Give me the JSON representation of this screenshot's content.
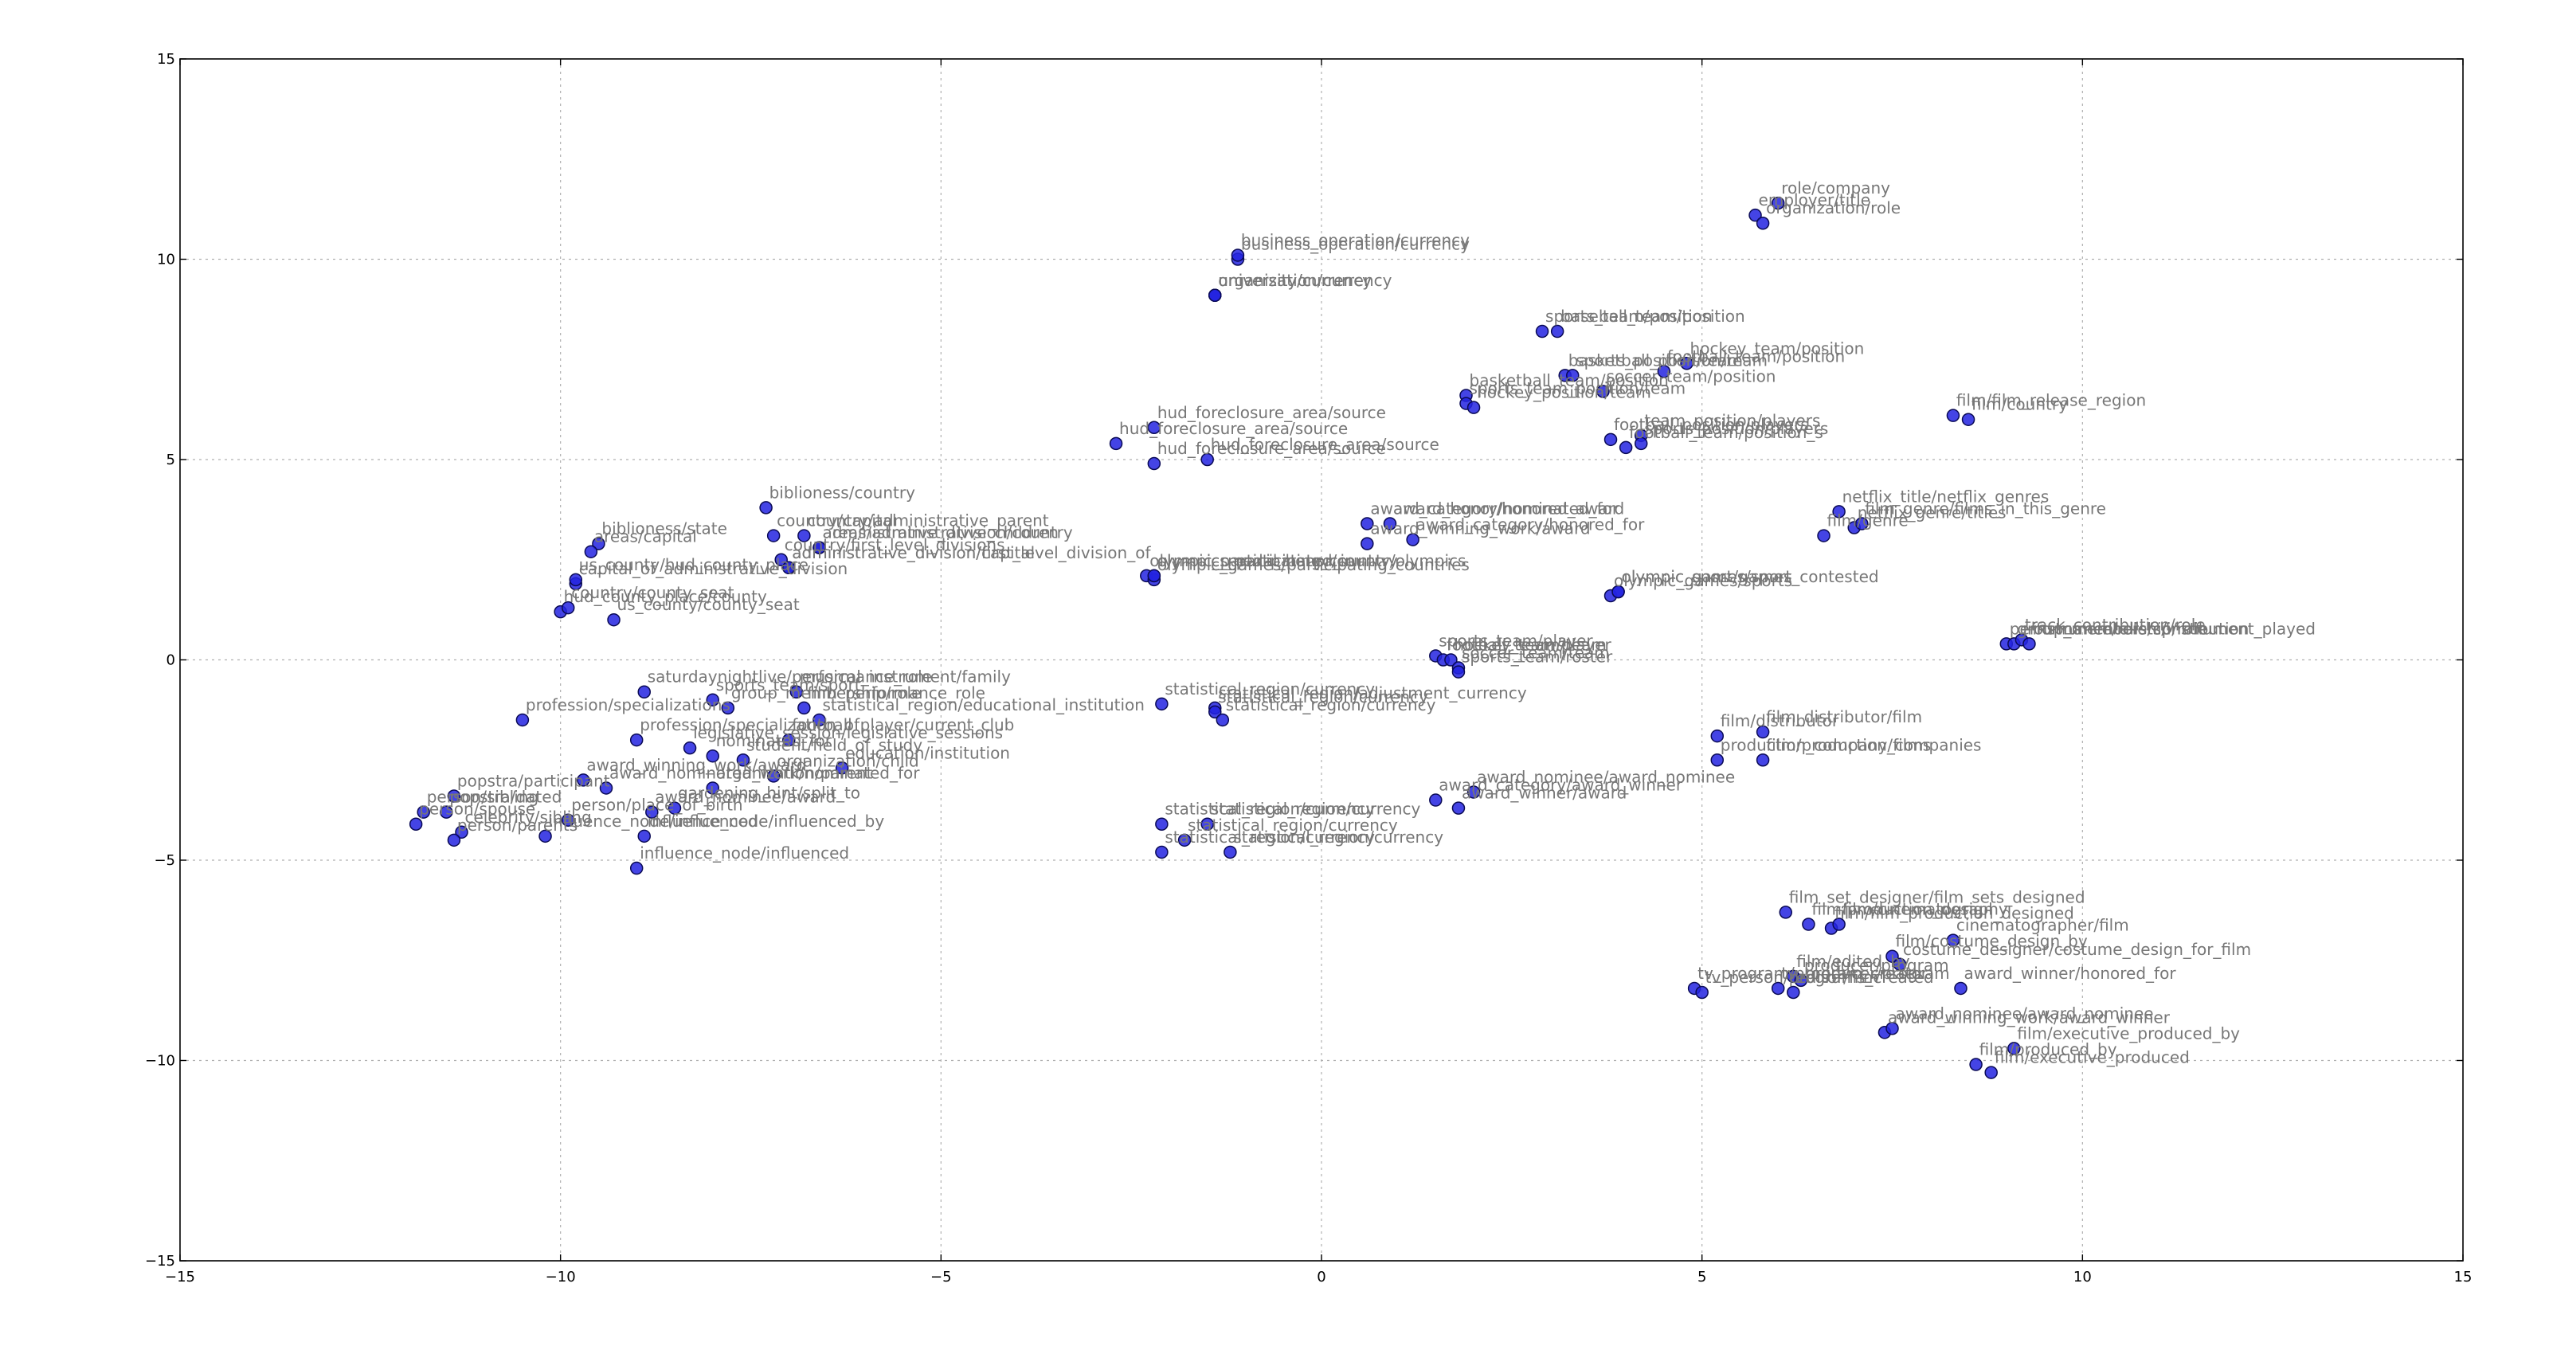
{
  "chart_data": {
    "type": "scatter",
    "title": "",
    "xlabel": "",
    "ylabel": "",
    "xlim": [
      -15,
      15
    ],
    "ylim": [
      -15,
      15
    ],
    "xticks": [
      -15,
      -10,
      -5,
      0,
      5,
      10,
      15
    ],
    "yticks": [
      -15,
      -10,
      -5,
      0,
      5,
      10,
      15
    ],
    "xtick_labels": [
      "−15",
      "−10",
      "−5",
      "0",
      "5",
      "10",
      "15"
    ],
    "ytick_labels": [
      "−15",
      "−10",
      "−5",
      "0",
      "5",
      "10",
      "15"
    ],
    "grid": true,
    "colors": {
      "point_fill": "#2323e0",
      "point_edge": "#0a0a55",
      "label_text": "#777777",
      "grid": "#b0b0b0"
    },
    "points": [
      {
        "x": 5.7,
        "y": 11.1,
        "label": "employer/title"
      },
      {
        "x": 5.8,
        "y": 10.9,
        "label": "organization/role"
      },
      {
        "x": 6.0,
        "y": 11.4,
        "label": "role/company"
      },
      {
        "x": -1.1,
        "y": 10.0,
        "label": "business_operation/currency"
      },
      {
        "x": -1.1,
        "y": 10.1,
        "label": "business_operation/currency"
      },
      {
        "x": -1.4,
        "y": 9.1,
        "label": "university/currency"
      },
      {
        "x": -1.4,
        "y": 9.1,
        "label": "university/currency"
      },
      {
        "x": -1.4,
        "y": 9.1,
        "label": "organization/currency"
      },
      {
        "x": 2.9,
        "y": 8.2,
        "label": "sports_team/position"
      },
      {
        "x": 3.1,
        "y": 8.2,
        "label": "baseball_team/position"
      },
      {
        "x": 4.8,
        "y": 7.4,
        "label": "hockey_team/position"
      },
      {
        "x": 4.5,
        "y": 7.2,
        "label": "football_team/position"
      },
      {
        "x": 3.2,
        "y": 7.1,
        "label": "basketball_position/team"
      },
      {
        "x": 3.3,
        "y": 7.1,
        "label": "sports_position/team"
      },
      {
        "x": 3.7,
        "y": 6.7,
        "label": "soccer_team/position"
      },
      {
        "x": 1.9,
        "y": 6.6,
        "label": "basketball_team/position"
      },
      {
        "x": 1.9,
        "y": 6.4,
        "label": "sports_team_position/team"
      },
      {
        "x": 2.0,
        "y": 6.3,
        "label": "hockey_position/team"
      },
      {
        "x": 4.0,
        "y": 5.3,
        "label": "football_team/position_s"
      },
      {
        "x": 3.8,
        "y": 5.5,
        "label": "football_position/players"
      },
      {
        "x": 4.2,
        "y": 5.6,
        "label": "team_position/players"
      },
      {
        "x": 4.2,
        "y": 5.4,
        "label": "sports_position/players"
      },
      {
        "x": 8.3,
        "y": 6.1,
        "label": "film/film_release_region"
      },
      {
        "x": 8.5,
        "y": 6.0,
        "label": "film/country"
      },
      {
        "x": -2.7,
        "y": 5.4,
        "label": "hud_foreclosure_area/source"
      },
      {
        "x": -2.2,
        "y": 5.8,
        "label": "hud_foreclosure_area/source"
      },
      {
        "x": -2.2,
        "y": 4.9,
        "label": "hud_foreclosure_area/source"
      },
      {
        "x": -1.5,
        "y": 5.0,
        "label": "hud_foreclosure_area/source"
      },
      {
        "x": 0.6,
        "y": 3.4,
        "label": "award_category/nominated_for"
      },
      {
        "x": 0.9,
        "y": 3.4,
        "label": "award_honor/honored_award"
      },
      {
        "x": 1.2,
        "y": 3.0,
        "label": "award_category/honored_for"
      },
      {
        "x": 0.6,
        "y": 2.9,
        "label": "award_winning_work/award"
      },
      {
        "x": 6.6,
        "y": 3.1,
        "label": "film/genre"
      },
      {
        "x": 6.8,
        "y": 3.7,
        "label": "netflix_title/netflix_genres"
      },
      {
        "x": 7.0,
        "y": 3.3,
        "label": "netflix_genre/titles"
      },
      {
        "x": 7.1,
        "y": 3.4,
        "label": "film_genre/films_in_this_genre"
      },
      {
        "x": -7.3,
        "y": 3.8,
        "label": "biblioness/country"
      },
      {
        "x": -7.2,
        "y": 3.1,
        "label": "country/capital"
      },
      {
        "x": -9.5,
        "y": 2.9,
        "label": "biblioness/state"
      },
      {
        "x": -9.6,
        "y": 2.7,
        "label": "areas/capital"
      },
      {
        "x": -6.8,
        "y": 3.1,
        "label": "country/administrative_parent"
      },
      {
        "x": -6.6,
        "y": 2.8,
        "label": "administrative_division/country"
      },
      {
        "x": -6.6,
        "y": 2.8,
        "label": "areas/administrative_children"
      },
      {
        "x": -7.1,
        "y": 2.5,
        "label": "country/first_level_divisions"
      },
      {
        "x": -7.0,
        "y": 2.3,
        "label": "administrative_division/first_level_division_of"
      },
      {
        "x": -7.0,
        "y": 2.3,
        "label": "administrative_division/capital"
      },
      {
        "x": -9.8,
        "y": 1.9,
        "label": "capital_of_administrative_division"
      },
      {
        "x": -9.8,
        "y": 2.0,
        "label": "us_county/hud_county_place"
      },
      {
        "x": -10.0,
        "y": 1.2,
        "label": "hud_county_place/county"
      },
      {
        "x": -9.9,
        "y": 1.3,
        "label": "country/county_seat"
      },
      {
        "x": -9.3,
        "y": 1.0,
        "label": "us_county/county_seat"
      },
      {
        "x": -2.3,
        "y": 2.1,
        "label": "olympic_participating_country/olympics"
      },
      {
        "x": -2.2,
        "y": 2.0,
        "label": "olympic_games/participating_countries"
      },
      {
        "x": -2.2,
        "y": 2.1,
        "label": "olympic_medal_honor/country"
      },
      {
        "x": -2.2,
        "y": 2.1,
        "label": "olympics_participated_in"
      },
      {
        "x": 3.8,
        "y": 1.6,
        "label": "olympic_games/sports"
      },
      {
        "x": 3.9,
        "y": 1.7,
        "label": "olympic_sport/games_contested"
      },
      {
        "x": 3.9,
        "y": 1.7,
        "label": "olympic_games/sport"
      },
      {
        "x": 9.0,
        "y": 0.4,
        "label": "performance/role/contribution"
      },
      {
        "x": 9.1,
        "y": 0.4,
        "label": "group_membership/role"
      },
      {
        "x": 9.2,
        "y": 0.5,
        "label": "track_contribution/role"
      },
      {
        "x": 9.3,
        "y": 0.4,
        "label": "instrumentalists/instrument_played"
      },
      {
        "x": 1.5,
        "y": 0.1,
        "label": "sports_team/player"
      },
      {
        "x": 1.6,
        "y": 0.0,
        "label": "football_team/player"
      },
      {
        "x": 1.7,
        "y": 0.0,
        "label": "hockey_team/team"
      },
      {
        "x": 1.8,
        "y": -0.2,
        "label": "soccer_team/team"
      },
      {
        "x": 1.8,
        "y": -0.3,
        "label": "sports_team/roster"
      },
      {
        "x": -2.1,
        "y": -1.1,
        "label": "statistical_region/currency"
      },
      {
        "x": -1.4,
        "y": -1.2,
        "label": "statistical_region/adjustment_currency"
      },
      {
        "x": -1.4,
        "y": -1.3,
        "label": "statistical_region/currency"
      },
      {
        "x": -1.3,
        "y": -1.5,
        "label": "statistical_region/currency"
      },
      {
        "x": -8.9,
        "y": -0.8,
        "label": "saturdaynightlive/performance_role"
      },
      {
        "x": -8.0,
        "y": -1.0,
        "label": "sports_team/sport"
      },
      {
        "x": -7.8,
        "y": -1.2,
        "label": "group_membership/role"
      },
      {
        "x": -6.9,
        "y": -0.8,
        "label": "musical_instrument/family"
      },
      {
        "x": -6.8,
        "y": -1.2,
        "label": "film_performance_role"
      },
      {
        "x": -10.5,
        "y": -1.5,
        "label": "profession/specializations"
      },
      {
        "x": -9.0,
        "y": -2.0,
        "label": "profession/specialization_of"
      },
      {
        "x": -8.3,
        "y": -2.2,
        "label": "legislative_session/legislative_sessions"
      },
      {
        "x": -7.0,
        "y": -2.0,
        "label": "football_player/current_club"
      },
      {
        "x": -6.6,
        "y": -1.5,
        "label": "statistical_region/educational_institution"
      },
      {
        "x": -7.6,
        "y": -2.5,
        "label": "student/field_of_study"
      },
      {
        "x": -6.3,
        "y": -2.7,
        "label": "education/institution"
      },
      {
        "x": -8.0,
        "y": -2.4,
        "label": "nominated_for"
      },
      {
        "x": -9.7,
        "y": -3.0,
        "label": "award_winning_work/award"
      },
      {
        "x": -9.4,
        "y": -3.2,
        "label": "award_nominated_work/nominated_for"
      },
      {
        "x": -7.2,
        "y": -2.9,
        "label": "organization/child"
      },
      {
        "x": -8.0,
        "y": -3.2,
        "label": "organization/parent"
      },
      {
        "x": -11.4,
        "y": -3.4,
        "label": "popstra/participant"
      },
      {
        "x": -11.5,
        "y": -3.8,
        "label": "popstra/dated"
      },
      {
        "x": -11.3,
        "y": -4.3,
        "label": "celebrity/sibling"
      },
      {
        "x": -11.8,
        "y": -3.8,
        "label": "person/sibling"
      },
      {
        "x": -11.9,
        "y": -4.1,
        "label": "person/spouse"
      },
      {
        "x": -11.4,
        "y": -4.5,
        "label": "person/parents"
      },
      {
        "x": -10.2,
        "y": -4.4,
        "label": "influence_node/influenced"
      },
      {
        "x": -9.9,
        "y": -4.0,
        "label": "person/place_of_birth"
      },
      {
        "x": -8.8,
        "y": -3.8,
        "label": "award_nominee/award"
      },
      {
        "x": -8.5,
        "y": -3.7,
        "label": "gardening_hint/split_to"
      },
      {
        "x": -8.9,
        "y": -4.4,
        "label": "influence_node/influenced_by"
      },
      {
        "x": -9.0,
        "y": -5.2,
        "label": "influence_node/influenced"
      },
      {
        "x": -2.1,
        "y": -4.1,
        "label": "statistical_region/currency"
      },
      {
        "x": -1.8,
        "y": -4.5,
        "label": "statistical_region/currency"
      },
      {
        "x": -1.5,
        "y": -4.1,
        "label": "statistical_region/currency"
      },
      {
        "x": -2.1,
        "y": -4.8,
        "label": "statistical_region/currency"
      },
      {
        "x": -1.2,
        "y": -4.8,
        "label": "statistical_region/currency"
      },
      {
        "x": 1.5,
        "y": -3.5,
        "label": "award_category/award_winner"
      },
      {
        "x": 1.8,
        "y": -3.7,
        "label": "award_winner/award"
      },
      {
        "x": 2.0,
        "y": -3.3,
        "label": "award_nominee/award_nominee"
      },
      {
        "x": 5.2,
        "y": -1.9,
        "label": "film/distributor"
      },
      {
        "x": 5.2,
        "y": -2.5,
        "label": "production_company/films"
      },
      {
        "x": 5.8,
        "y": -1.8,
        "label": "film_distributor/film"
      },
      {
        "x": 5.8,
        "y": -2.5,
        "label": "film/production_companies"
      },
      {
        "x": 6.1,
        "y": -6.3,
        "label": "film_set_designer/film_sets_designed"
      },
      {
        "x": 6.4,
        "y": -6.6,
        "label": "film/production_design"
      },
      {
        "x": 6.7,
        "y": -6.7,
        "label": "film/film_production_designed"
      },
      {
        "x": 6.8,
        "y": -6.6,
        "label": "film/cinematography"
      },
      {
        "x": 8.3,
        "y": -7.0,
        "label": "cinematographer/film"
      },
      {
        "x": 7.5,
        "y": -7.4,
        "label": "film/costume_design_by"
      },
      {
        "x": 7.6,
        "y": -7.6,
        "label": "costume_designer/costume_design_for_film"
      },
      {
        "x": 4.9,
        "y": -8.2,
        "label": "tv_program/program_creator"
      },
      {
        "x": 5.0,
        "y": -8.3,
        "label": "tv_person/programs_created"
      },
      {
        "x": 6.0,
        "y": -8.2,
        "label": "tv_producer/program"
      },
      {
        "x": 6.2,
        "y": -7.9,
        "label": "film/edited_by"
      },
      {
        "x": 6.2,
        "y": -8.3,
        "label": "editor/film"
      },
      {
        "x": 6.3,
        "y": -8.0,
        "label": "producer/program"
      },
      {
        "x": 8.4,
        "y": -8.2,
        "label": "award_winner/honored_for"
      },
      {
        "x": 7.4,
        "y": -9.3,
        "label": "award_winning_work/award_winner"
      },
      {
        "x": 7.5,
        "y": -9.2,
        "label": "award_nominee/award_nominee"
      },
      {
        "x": 8.6,
        "y": -10.1,
        "label": "film/produced_by"
      },
      {
        "x": 8.8,
        "y": -10.3,
        "label": "film/executive_produced"
      },
      {
        "x": 9.1,
        "y": -9.7,
        "label": "film/executive_produced_by"
      }
    ]
  }
}
